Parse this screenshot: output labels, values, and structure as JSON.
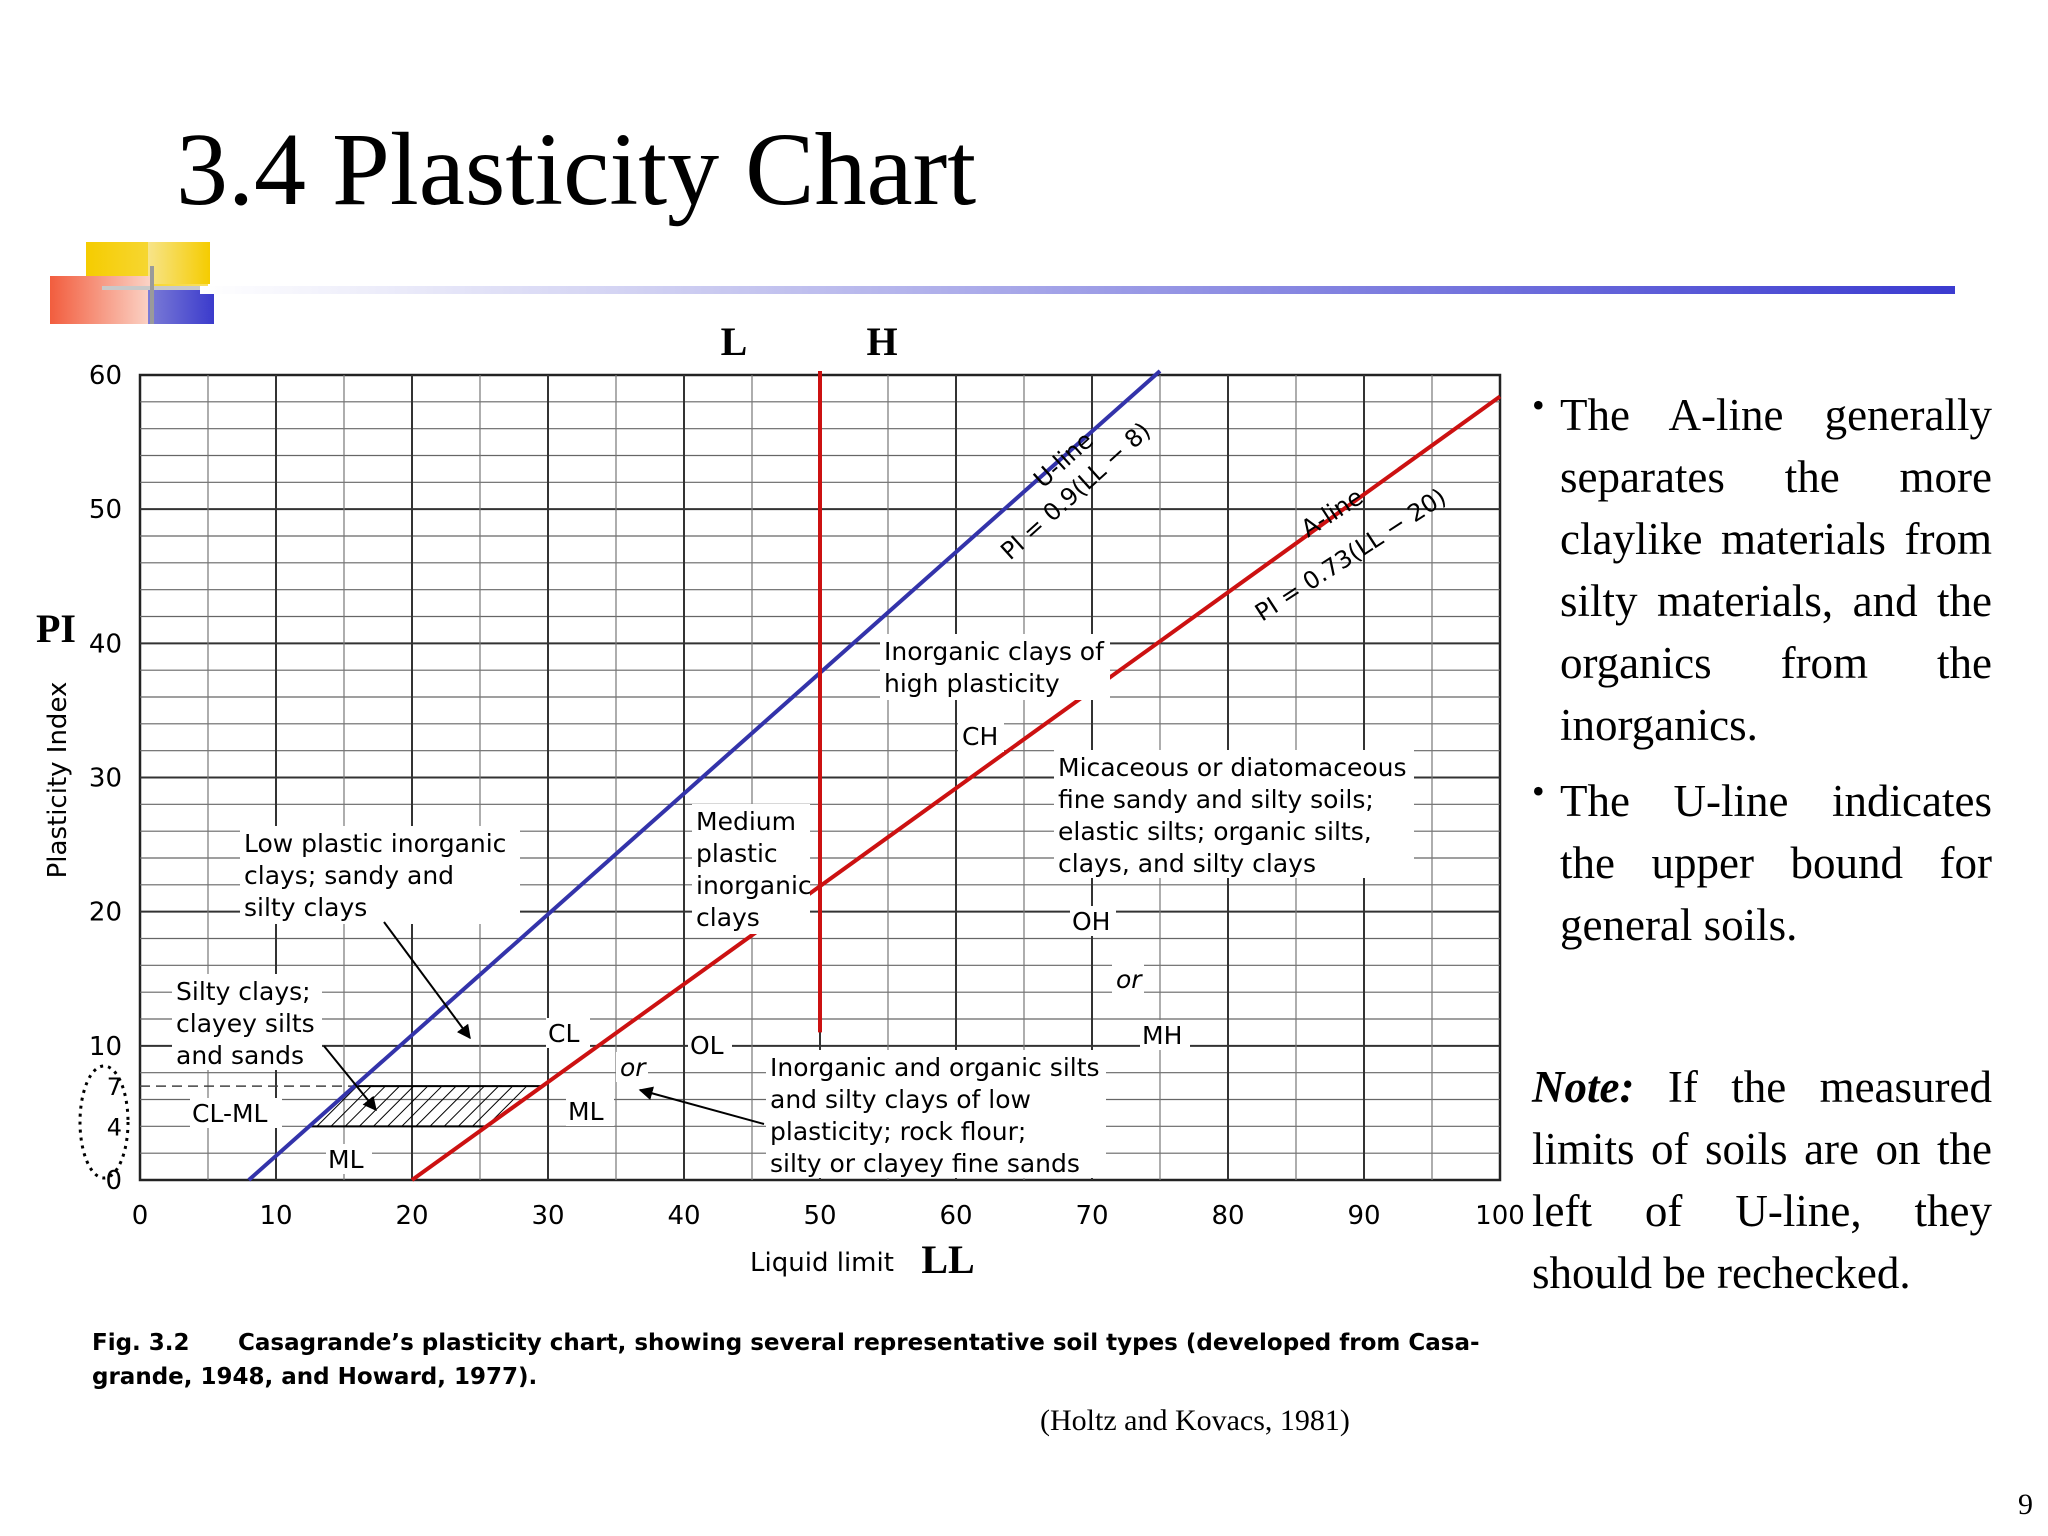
{
  "slide": {
    "title": "3.4 Plasticity Chart",
    "bullets": [
      "The A-line generally separates the more claylike materials from silty materials, and the organics from the inorganics.",
      "The U-line indicates the upper bound for general soils."
    ],
    "note_label": "Note:",
    "note_text": " If the measured limits of soils are on the left of U-line, they should be rechecked.",
    "citation": "(Holtz and Kovacs, 1981)",
    "page_number": "9",
    "colors": {
      "accent_bar": "#3b3bd0",
      "added_lines": "#cc1111"
    }
  },
  "chart_data": {
    "type": "line",
    "title": "",
    "xlabel": "Liquid limit",
    "ylabel": "Plasticity Index",
    "xlim": [
      0,
      100
    ],
    "ylim": [
      0,
      60
    ],
    "x_ticks": [
      0,
      10,
      20,
      30,
      40,
      50,
      60,
      70,
      80,
      90,
      100
    ],
    "y_ticks": [
      0,
      10,
      20,
      30,
      40,
      50,
      60
    ],
    "y_extra_ticks": [
      4,
      7
    ],
    "grid": true,
    "series": [
      {
        "name": "U-line",
        "equation": "PI = 0.9(LL − 8)",
        "x": [
          8,
          75
        ],
        "y": [
          0,
          60.3
        ],
        "color": "#3333aa"
      },
      {
        "name": "A-line",
        "equation": "PI = 0.73(LL − 20)",
        "x": [
          20,
          100
        ],
        "y": [
          0,
          58.4
        ],
        "color": "#cc1111"
      }
    ],
    "overlay": {
      "divider_x": 50,
      "divider_labels": [
        "L",
        "H"
      ],
      "axis_overlay_x": "LL",
      "axis_overlay_y": "PI"
    },
    "annotations": {
      "high_plasticity_clays": [
        "Inorganic clays of",
        "high plasticity"
      ],
      "ch": "CH",
      "micaceous": [
        "Micaceous or diatomaceous",
        "fine sandy and silty soils;",
        "elastic silts; organic silts,",
        "clays, and silty clays"
      ],
      "oh": "OH",
      "or_right": "or",
      "mh": "MH",
      "medium_plastic": [
        "Medium",
        "plastic",
        "inorganic",
        "clays"
      ],
      "low_plastic": [
        "Low plastic inorganic",
        "clays; sandy and",
        "silty clays"
      ],
      "silty_clays": [
        "Silty clays;",
        "clayey silts",
        "and sands"
      ],
      "cl": "CL",
      "ol": "OL",
      "or_left": "or",
      "ml": "ML",
      "cl_ml": "CL-ML",
      "ml_low": "ML",
      "low_plasticity_silts": [
        "Inorganic and organic silts",
        "and silty clays of low",
        "plasticity; rock flour;",
        "silty or clayey fine sands"
      ]
    },
    "caption_label": "Fig. 3.2",
    "caption_line1": "Casagrande’s plasticity chart, showing several representative soil types (developed from Casa-",
    "caption_line2": "grande, 1948, and Howard, 1977)."
  }
}
